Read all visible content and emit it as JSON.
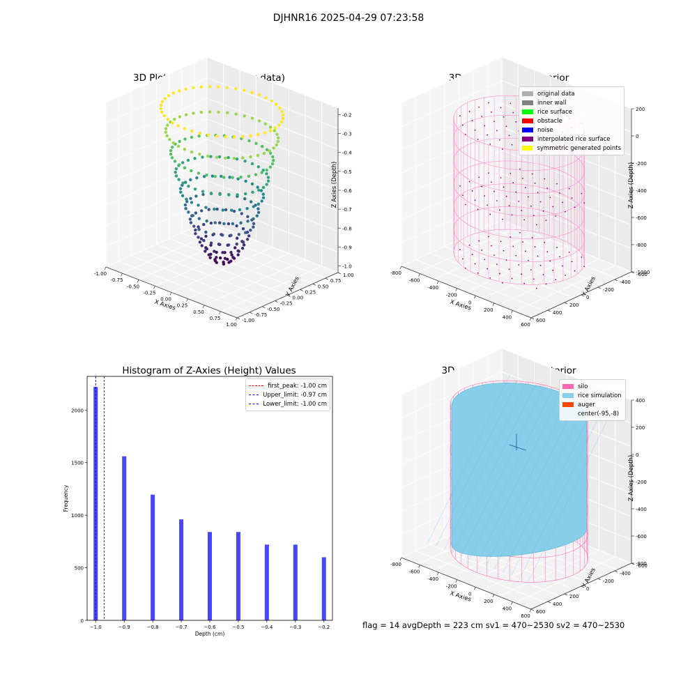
{
  "figure": {
    "suptitle": "DJHNR16 2025-04-29 07:23:58",
    "bottom_info": "flag = 14   avgDepth = 223 cm   sv1 = 470~2530   sv2 = 470~2530"
  },
  "chart_data": [
    {
      "type": "scatter",
      "id": "raw",
      "title": "3D Plot of Silo Interior(row data)",
      "xlabel": "X Axies",
      "ylabel": "Y Axies",
      "zlabel": "Z Axies (Depth)",
      "xlim": [
        -1.0,
        1.0
      ],
      "ylim": [
        -1.0,
        1.0
      ],
      "zlim": [
        -1.0,
        -0.2
      ],
      "xticks": [
        "-1.00",
        "-0.75",
        "-0.50",
        "-0.25",
        "0.00",
        "0.25",
        "0.50",
        "0.75",
        "1.00"
      ],
      "yticks": [
        "-1.00",
        "-0.75",
        "-0.50",
        "-0.25",
        "0.00",
        "0.25",
        "0.50",
        "0.75",
        "1.00"
      ],
      "zticks": [
        "-0.2",
        "-0.3",
        "-0.4",
        "-0.5",
        "-0.6",
        "-0.7",
        "-0.8",
        "-0.9",
        "-1.0"
      ],
      "surface": "bowl z = -1 + 0.8*(x^2+y^2)",
      "colormap": "viridis"
    },
    {
      "type": "scatter",
      "id": "classify",
      "title": "3D classify of Silo Interior",
      "xlabel": "X Axies",
      "ylabel": "Y Axies",
      "zlabel": "Z Axies (Depth)",
      "xticks": [
        "-800",
        "-600",
        "-400",
        "-200",
        "0",
        "200",
        "400",
        "600"
      ],
      "yticks": [
        "600",
        "400",
        "200",
        "0",
        "-200",
        "-400",
        "-600"
      ],
      "zticks": [
        "200",
        "0",
        "-200",
        "-400",
        "-600",
        "-800",
        "-1000"
      ],
      "legend": [
        {
          "label": "original data",
          "color": "#b0b0b0"
        },
        {
          "label": "inner wall",
          "color": "#808080"
        },
        {
          "label": "rice surface",
          "color": "#00ff00"
        },
        {
          "label": "obstacle",
          "color": "#ff0000"
        },
        {
          "label": "noise",
          "color": "#0000ff"
        },
        {
          "label": "interpolated rice surface",
          "color": "#800080"
        },
        {
          "label": "symmetric generated points",
          "color": "#ffff00"
        }
      ]
    },
    {
      "type": "bar",
      "id": "histogram",
      "title": "Histogram of Z-Axies (Height) Values",
      "xlabel": "Depth (cm)",
      "ylabel": "Frequency",
      "xlim": [
        -1.03,
        -0.17
      ],
      "ylim": [
        0,
        2320
      ],
      "xticks": [
        -1.0,
        -0.9,
        -0.8,
        -0.7,
        -0.6,
        -0.5,
        -0.4,
        -0.3,
        -0.2
      ],
      "yticks": [
        0,
        500,
        1000,
        1500,
        2000
      ],
      "bar_color": "#4747f5",
      "bars": [
        {
          "x": -1.0,
          "value": 2220
        },
        {
          "x": -0.9,
          "value": 1560
        },
        {
          "x": -0.8,
          "value": 1195
        },
        {
          "x": -0.7,
          "value": 960
        },
        {
          "x": -0.6,
          "value": 840
        },
        {
          "x": -0.5,
          "value": 840
        },
        {
          "x": -0.4,
          "value": 720
        },
        {
          "x": -0.3,
          "value": 720
        },
        {
          "x": -0.2,
          "value": 600
        }
      ],
      "vlines": [
        {
          "label": "first_peak: -1.00 cm",
          "x": -1.0,
          "color": "#ff0000"
        },
        {
          "label": "Upper_limit: -0.97 cm",
          "x": -0.97,
          "color": "#0000ff"
        },
        {
          "label": "Lower_limit: -1.00 cm",
          "x": -1.0,
          "color": "#0000ff"
        }
      ],
      "legend_position": "top-right"
    },
    {
      "type": "surface",
      "id": "simulation",
      "title": "3D simulation of Silo Interior",
      "xlabel": "X Axies",
      "ylabel": "Y Axies",
      "zlabel": "Z Axies (Depth)",
      "xticks": [
        "-800",
        "-600",
        "-400",
        "-200",
        "0",
        "200",
        "400",
        "600"
      ],
      "yticks": [
        "600",
        "400",
        "200",
        "0",
        "-200",
        "-400",
        "-600"
      ],
      "zticks": [
        "400",
        "200",
        "0",
        "-200",
        "-400",
        "-600",
        "-800"
      ],
      "legend": [
        {
          "label": "silo",
          "color": "#ff69b4"
        },
        {
          "label": "rice simulation",
          "color": "#87ceeb"
        },
        {
          "label": "auger",
          "color": "#ff4500"
        },
        {
          "label": "center(-95,-8)",
          "color": ""
        }
      ]
    }
  ]
}
